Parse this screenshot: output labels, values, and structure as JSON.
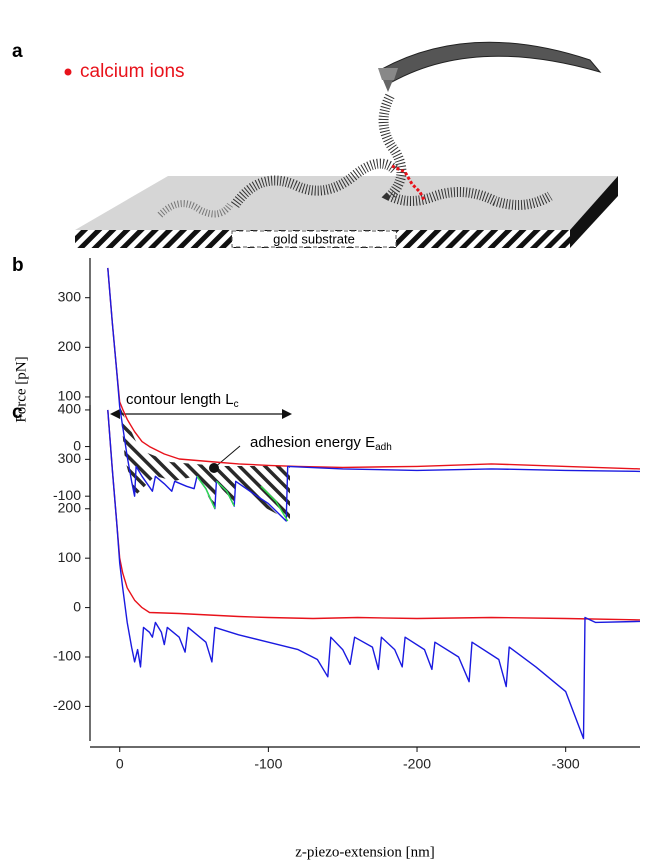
{
  "panel_a": {
    "label": "a",
    "legend": "calcium ions",
    "substrate_label": "gold substrate"
  },
  "chart_data": [
    {
      "type": "line",
      "panel_label": "b",
      "ylabel": "Force [pN]",
      "xlim": [
        20,
        -350
      ],
      "ylim": [
        -150,
        380
      ],
      "yticks": [
        -100,
        0,
        100,
        200,
        300
      ],
      "annotations": [
        {
          "text": "contour length L",
          "sub": "c"
        },
        {
          "text": "adhesion energy E",
          "sub": "adh"
        }
      ],
      "series": [
        {
          "color": "#e8121b",
          "x": [
            8,
            5,
            2,
            0,
            -2,
            -5,
            -10,
            -15,
            -20,
            -30,
            -40,
            -60,
            -80,
            -100,
            -120,
            -150,
            -200,
            -250,
            -300,
            -350
          ],
          "values": [
            360,
            250,
            150,
            90,
            75,
            55,
            30,
            10,
            0,
            -15,
            -25,
            -30,
            -35,
            -38,
            -40,
            -42,
            -40,
            -35,
            -40,
            -45
          ]
        },
        {
          "color": "#1a1ae0",
          "x": [
            8,
            5,
            2,
            0,
            -2,
            -5,
            -8,
            -10,
            -11,
            -15,
            -22,
            -24,
            -30,
            -35,
            -37,
            -45,
            -50,
            -52,
            -58,
            -64,
            -65,
            -72,
            -77,
            -78,
            -90,
            -100,
            -112,
            -113,
            -150,
            -200,
            -250,
            -300,
            -350
          ],
          "values": [
            360,
            250,
            150,
            80,
            40,
            -20,
            -70,
            -100,
            -40,
            -60,
            -90,
            -60,
            -75,
            -90,
            -70,
            -80,
            -85,
            -60,
            -85,
            -125,
            -70,
            -90,
            -120,
            -70,
            -95,
            -115,
            -150,
            -40,
            -45,
            -48,
            -45,
            -48,
            -50
          ]
        },
        {
          "color": "#2ee04a",
          "x": [
            -52,
            -58,
            -64,
            null,
            -65,
            -72,
            -77,
            null,
            -95,
            -105,
            -113
          ],
          "values": [
            -60,
            -85,
            -125,
            null,
            -70,
            -90,
            -120,
            null,
            -80,
            -110,
            -150
          ]
        }
      ]
    },
    {
      "type": "line",
      "panel_label": "c",
      "xlabel": "z-piezo-extension [nm]",
      "xlim": [
        20,
        -350
      ],
      "ylim": [
        -270,
        410
      ],
      "yticks": [
        -200,
        -100,
        0,
        100,
        200,
        300,
        400
      ],
      "xticks": [
        0,
        -100,
        -200,
        -300
      ],
      "series": [
        {
          "color": "#e8121b",
          "x": [
            8,
            5,
            2,
            0,
            -2,
            -5,
            -10,
            -15,
            -20,
            -40,
            -60,
            -80,
            -100,
            -130,
            -160,
            -200,
            -250,
            -300,
            -350
          ],
          "values": [
            400,
            280,
            170,
            100,
            70,
            40,
            15,
            0,
            -10,
            -12,
            -15,
            -18,
            -20,
            -22,
            -20,
            -22,
            -20,
            -22,
            -25
          ]
        },
        {
          "color": "#1a1ae0",
          "x": [
            8,
            5,
            2,
            0,
            -2,
            -5,
            -8,
            -10,
            -12,
            -14,
            -16,
            -20,
            -22,
            -24,
            -28,
            -30,
            -32,
            -40,
            -44,
            -46,
            -58,
            -62,
            -64,
            -80,
            -100,
            -120,
            -133,
            -140,
            -142,
            -150,
            -155,
            -158,
            -170,
            -174,
            -176,
            -185,
            -190,
            -192,
            -205,
            -210,
            -212,
            -228,
            -235,
            -237,
            -255,
            -260,
            -262,
            -280,
            -300,
            -312,
            -313,
            -320,
            -350
          ],
          "values": [
            400,
            280,
            170,
            90,
            40,
            -30,
            -80,
            -110,
            -85,
            -120,
            -40,
            -50,
            -60,
            -30,
            -50,
            -75,
            -40,
            -60,
            -90,
            -40,
            -70,
            -110,
            -40,
            -55,
            -70,
            -85,
            -105,
            -140,
            -60,
            -85,
            -115,
            -60,
            -80,
            -125,
            -60,
            -85,
            -120,
            -60,
            -85,
            -125,
            -70,
            -100,
            -150,
            -70,
            -105,
            -160,
            -80,
            -120,
            -170,
            -265,
            -20,
            -30,
            -28
          ]
        }
      ]
    }
  ]
}
